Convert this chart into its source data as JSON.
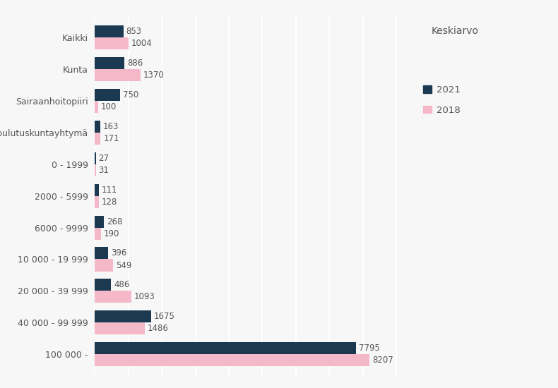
{
  "categories": [
    "100 000 -",
    "40 000 - 99 999",
    "20 000 - 39 999",
    "10 000 - 19 999",
    "6000 - 9999",
    "2000 - 5999",
    "0 - 1999",
    "Koulutuskuntayhtymä",
    "Sairaanhoitopiiri",
    "Kunta",
    "Kaikki"
  ],
  "values_2021": [
    7795,
    1675,
    486,
    396,
    268,
    111,
    27,
    163,
    750,
    886,
    853
  ],
  "values_2018": [
    8207,
    1486,
    1093,
    549,
    190,
    128,
    31,
    171,
    100,
    1370,
    1004
  ],
  "color_2021": "#1b3a52",
  "color_2018": "#f4b8c8",
  "title": "Keskiarvo",
  "legend_2021": "2021",
  "legend_2018": "2018",
  "xlim_max": 9500,
  "bar_height": 0.38,
  "label_fontsize": 8.5,
  "category_fontsize": 9,
  "title_fontsize": 10,
  "legend_fontsize": 9.5,
  "background_color": "#f7f7f7",
  "grid_color": "#ffffff",
  "text_color": "#555555"
}
